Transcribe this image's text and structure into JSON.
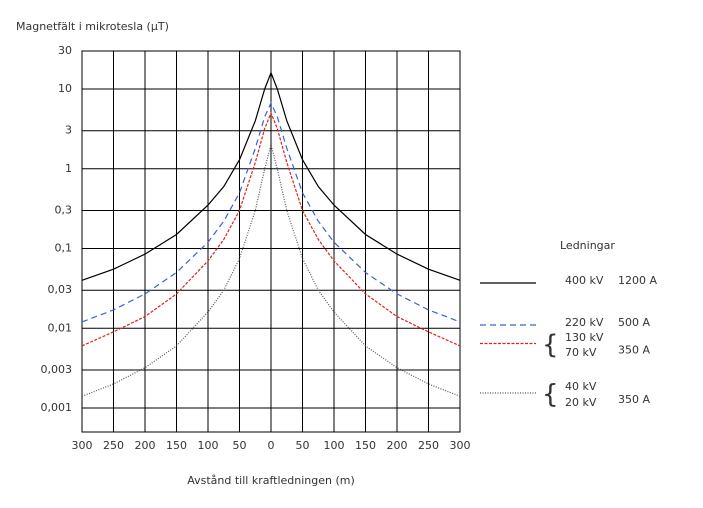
{
  "chart_data": {
    "type": "line",
    "title": "Magnetfält i mikrotesla (µT)",
    "x_label": "Avstånd till kraftledningen (m)",
    "log_y": true,
    "grid": true,
    "xlim": [
      -300,
      300
    ],
    "xticks": [
      {
        "value": -300,
        "label": "300"
      },
      {
        "value": -250,
        "label": "250"
      },
      {
        "value": -200,
        "label": "200"
      },
      {
        "value": -150,
        "label": "150"
      },
      {
        "value": -100,
        "label": "100"
      },
      {
        "value": -50,
        "label": "50"
      },
      0,
      50,
      100,
      150,
      200,
      250,
      300
    ],
    "ylim": [
      0.0005,
      30
    ],
    "yticks": [
      30,
      10,
      3,
      1,
      {
        "value": 0.3,
        "label": "0,3"
      },
      {
        "value": 0.1,
        "label": "0,1"
      },
      {
        "value": 0.03,
        "label": "0,03"
      },
      {
        "value": 0.01,
        "label": "0,01"
      },
      {
        "value": 0.003,
        "label": "0,003"
      },
      {
        "value": 0.001,
        "label": "0,001"
      }
    ],
    "legend_title": "Ledningar",
    "legend_position": "right",
    "x": [
      -300,
      -250,
      -200,
      -150,
      -100,
      -75,
      -50,
      -25,
      -10,
      0,
      10,
      25,
      50,
      75,
      100,
      150,
      200,
      250,
      300
    ],
    "series": [
      {
        "voltages": [
          "400 kV"
        ],
        "current": "1200 A",
        "color": "#000000",
        "style": "solid",
        "values": [
          0.04,
          0.055,
          0.085,
          0.15,
          0.35,
          0.6,
          1.3,
          4,
          10,
          16,
          10,
          4,
          1.3,
          0.6,
          0.35,
          0.15,
          0.085,
          0.055,
          0.04
        ]
      },
      {
        "voltages": [
          "220 kV"
        ],
        "current": "500 A",
        "color": "#3a62d8",
        "style": "dashed",
        "values": [
          0.012,
          0.017,
          0.027,
          0.05,
          0.12,
          0.22,
          0.5,
          1.8,
          4.5,
          6.7,
          4.5,
          1.8,
          0.5,
          0.22,
          0.12,
          0.05,
          0.027,
          0.017,
          0.012
        ]
      },
      {
        "voltages": [
          "130 kV",
          "70 kV"
        ],
        "current": "350 A",
        "color": "#e0201c",
        "style": "fine-dashed",
        "values": [
          0.006,
          0.009,
          0.014,
          0.027,
          0.07,
          0.13,
          0.3,
          1.2,
          3.2,
          5,
          3.2,
          1.2,
          0.3,
          0.13,
          0.07,
          0.027,
          0.014,
          0.009,
          0.006
        ]
      },
      {
        "voltages": [
          "40 kV",
          "20 kV"
        ],
        "current": "350 A",
        "color": "#555555",
        "style": "dotted",
        "values": [
          0.0014,
          0.002,
          0.0032,
          0.006,
          0.016,
          0.03,
          0.075,
          0.3,
          1,
          2,
          1,
          0.3,
          0.075,
          0.03,
          0.016,
          0.006,
          0.0032,
          0.002,
          0.0014
        ]
      }
    ]
  }
}
